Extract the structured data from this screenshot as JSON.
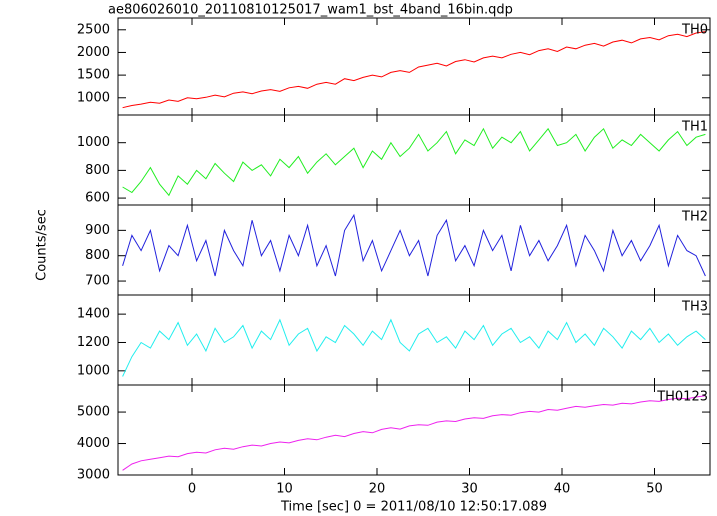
{
  "title": "ae806026010_20110810125017_wam1_bst_4band_16bin.qdp",
  "y_label": "Counts/sec",
  "x_label": "Time [sec] 0 = 2011/08/10 12:50:17.089",
  "chart_data": [
    {
      "type": "line",
      "label": "TH0",
      "color": "#ff0000",
      "x": [
        -7.5,
        -6.5,
        -5.5,
        -4.5,
        -3.5,
        -2.5,
        -1.5,
        -0.5,
        0.5,
        1.5,
        2.5,
        3.5,
        4.5,
        5.5,
        6.5,
        7.5,
        8.5,
        9.5,
        10.5,
        11.5,
        12.5,
        13.5,
        14.5,
        15.5,
        16.5,
        17.5,
        18.5,
        19.5,
        20.5,
        21.5,
        22.5,
        23.5,
        24.5,
        25.5,
        26.5,
        27.5,
        28.5,
        29.5,
        30.5,
        31.5,
        32.5,
        33.5,
        34.5,
        35.5,
        36.5,
        37.5,
        38.5,
        39.5,
        40.5,
        41.5,
        42.5,
        43.5,
        44.5,
        45.5,
        46.5,
        47.5,
        48.5,
        49.5,
        50.5,
        51.5,
        52.5,
        53.5,
        54.5,
        55.5
      ],
      "values": [
        780,
        830,
        860,
        900,
        880,
        950,
        920,
        1000,
        980,
        1010,
        1060,
        1020,
        1100,
        1130,
        1090,
        1150,
        1180,
        1140,
        1220,
        1250,
        1210,
        1300,
        1340,
        1300,
        1420,
        1380,
        1450,
        1500,
        1460,
        1560,
        1600,
        1560,
        1680,
        1720,
        1760,
        1700,
        1800,
        1840,
        1790,
        1880,
        1920,
        1880,
        1960,
        2000,
        1950,
        2040,
        2080,
        2020,
        2120,
        2080,
        2160,
        2200,
        2140,
        2230,
        2270,
        2210,
        2300,
        2330,
        2280,
        2370,
        2400,
        2350,
        2430,
        2460
      ],
      "xlim": [
        -8,
        56
      ],
      "xticks": [
        0,
        10,
        20,
        30,
        40,
        50
      ],
      "ylim": [
        620,
        2760
      ],
      "yticks": [
        1000,
        1500,
        2000,
        2500
      ]
    },
    {
      "type": "line",
      "label": "TH1",
      "color": "#22ee22",
      "x": [
        -7.5,
        -6.5,
        -5.5,
        -4.5,
        -3.5,
        -2.5,
        -1.5,
        -0.5,
        0.5,
        1.5,
        2.5,
        3.5,
        4.5,
        5.5,
        6.5,
        7.5,
        8.5,
        9.5,
        10.5,
        11.5,
        12.5,
        13.5,
        14.5,
        15.5,
        16.5,
        17.5,
        18.5,
        19.5,
        20.5,
        21.5,
        22.5,
        23.5,
        24.5,
        25.5,
        26.5,
        27.5,
        28.5,
        29.5,
        30.5,
        31.5,
        32.5,
        33.5,
        34.5,
        35.5,
        36.5,
        37.5,
        38.5,
        39.5,
        40.5,
        41.5,
        42.5,
        43.5,
        44.5,
        45.5,
        46.5,
        47.5,
        48.5,
        49.5,
        50.5,
        51.5,
        52.5,
        53.5,
        54.5,
        55.5
      ],
      "values": [
        680,
        640,
        720,
        820,
        700,
        620,
        760,
        700,
        800,
        740,
        850,
        780,
        720,
        860,
        800,
        840,
        760,
        880,
        820,
        900,
        780,
        860,
        920,
        840,
        900,
        960,
        820,
        940,
        880,
        1000,
        900,
        960,
        1060,
        940,
        1000,
        1080,
        920,
        1020,
        980,
        1100,
        960,
        1040,
        1000,
        1080,
        940,
        1020,
        1100,
        980,
        1000,
        1060,
        940,
        1040,
        1100,
        960,
        1020,
        980,
        1060,
        1000,
        940,
        1020,
        1080,
        980,
        1040,
        1060
      ],
      "xlim": [
        -8,
        56
      ],
      "xticks": [
        0,
        10,
        20,
        30,
        40,
        50
      ],
      "ylim": [
        550,
        1200
      ],
      "yticks": [
        600,
        800,
        1000
      ]
    },
    {
      "type": "line",
      "label": "TH2",
      "color": "#2222dd",
      "x": [
        -7.5,
        -6.5,
        -5.5,
        -4.5,
        -3.5,
        -2.5,
        -1.5,
        -0.5,
        0.5,
        1.5,
        2.5,
        3.5,
        4.5,
        5.5,
        6.5,
        7.5,
        8.5,
        9.5,
        10.5,
        11.5,
        12.5,
        13.5,
        14.5,
        15.5,
        16.5,
        17.5,
        18.5,
        19.5,
        20.5,
        21.5,
        22.5,
        23.5,
        24.5,
        25.5,
        26.5,
        27.5,
        28.5,
        29.5,
        30.5,
        31.5,
        32.5,
        33.5,
        34.5,
        35.5,
        36.5,
        37.5,
        38.5,
        39.5,
        40.5,
        41.5,
        42.5,
        43.5,
        44.5,
        45.5,
        46.5,
        47.5,
        48.5,
        49.5,
        50.5,
        51.5,
        52.5,
        53.5,
        54.5,
        55.5
      ],
      "values": [
        760,
        880,
        820,
        900,
        740,
        840,
        800,
        920,
        780,
        860,
        720,
        900,
        820,
        760,
        940,
        800,
        860,
        740,
        880,
        800,
        920,
        760,
        840,
        720,
        900,
        960,
        780,
        860,
        740,
        820,
        900,
        800,
        860,
        720,
        880,
        940,
        780,
        840,
        760,
        900,
        820,
        880,
        740,
        920,
        800,
        860,
        780,
        840,
        920,
        760,
        880,
        820,
        740,
        900,
        800,
        860,
        780,
        840,
        920,
        760,
        880,
        820,
        800,
        720
      ],
      "xlim": [
        -8,
        56
      ],
      "xticks": [
        0,
        10,
        20,
        30,
        40,
        50
      ],
      "ylim": [
        645,
        1000
      ],
      "yticks": [
        700,
        800,
        900
      ]
    },
    {
      "type": "line",
      "label": "TH3",
      "color": "#22eeee",
      "x": [
        -7.5,
        -6.5,
        -5.5,
        -4.5,
        -3.5,
        -2.5,
        -1.5,
        -0.5,
        0.5,
        1.5,
        2.5,
        3.5,
        4.5,
        5.5,
        6.5,
        7.5,
        8.5,
        9.5,
        10.5,
        11.5,
        12.5,
        13.5,
        14.5,
        15.5,
        16.5,
        17.5,
        18.5,
        19.5,
        20.5,
        21.5,
        22.5,
        23.5,
        24.5,
        25.5,
        26.5,
        27.5,
        28.5,
        29.5,
        30.5,
        31.5,
        32.5,
        33.5,
        34.5,
        35.5,
        36.5,
        37.5,
        38.5,
        39.5,
        40.5,
        41.5,
        42.5,
        43.5,
        44.5,
        45.5,
        46.5,
        47.5,
        48.5,
        49.5,
        50.5,
        51.5,
        52.5,
        53.5,
        54.5,
        55.5
      ],
      "values": [
        960,
        1100,
        1200,
        1160,
        1280,
        1220,
        1340,
        1180,
        1260,
        1140,
        1300,
        1200,
        1240,
        1320,
        1160,
        1280,
        1220,
        1360,
        1180,
        1260,
        1300,
        1140,
        1240,
        1200,
        1320,
        1260,
        1180,
        1280,
        1220,
        1360,
        1200,
        1140,
        1260,
        1300,
        1200,
        1240,
        1160,
        1280,
        1220,
        1320,
        1180,
        1260,
        1300,
        1200,
        1240,
        1160,
        1280,
        1220,
        1340,
        1200,
        1260,
        1180,
        1300,
        1240,
        1160,
        1280,
        1220,
        1300,
        1200,
        1260,
        1180,
        1240,
        1280,
        1220
      ],
      "xlim": [
        -8,
        56
      ],
      "xticks": [
        0,
        10,
        20,
        30,
        40,
        50
      ],
      "ylim": [
        900,
        1535
      ],
      "yticks": [
        1000,
        1200,
        1400
      ]
    },
    {
      "type": "line",
      "label": "TH0123",
      "color": "#ee22ee",
      "x": [
        -7.5,
        -6.5,
        -5.5,
        -4.5,
        -3.5,
        -2.5,
        -1.5,
        -0.5,
        0.5,
        1.5,
        2.5,
        3.5,
        4.5,
        5.5,
        6.5,
        7.5,
        8.5,
        9.5,
        10.5,
        11.5,
        12.5,
        13.5,
        14.5,
        15.5,
        16.5,
        17.5,
        18.5,
        19.5,
        20.5,
        21.5,
        22.5,
        23.5,
        24.5,
        25.5,
        26.5,
        27.5,
        28.5,
        29.5,
        30.5,
        31.5,
        32.5,
        33.5,
        34.5,
        35.5,
        36.5,
        37.5,
        38.5,
        39.5,
        40.5,
        41.5,
        42.5,
        43.5,
        44.5,
        45.5,
        46.5,
        47.5,
        48.5,
        49.5,
        50.5,
        51.5,
        52.5,
        53.5,
        54.5,
        55.5
      ],
      "values": [
        3150,
        3350,
        3450,
        3500,
        3550,
        3600,
        3580,
        3680,
        3720,
        3700,
        3800,
        3850,
        3820,
        3900,
        3950,
        3920,
        4000,
        4050,
        4020,
        4100,
        4150,
        4120,
        4200,
        4260,
        4220,
        4320,
        4380,
        4340,
        4450,
        4500,
        4460,
        4560,
        4600,
        4580,
        4680,
        4720,
        4700,
        4780,
        4820,
        4800,
        4880,
        4920,
        4900,
        4980,
        5020,
        5000,
        5080,
        5060,
        5120,
        5180,
        5150,
        5200,
        5240,
        5220,
        5280,
        5260,
        5320,
        5360,
        5340,
        5400,
        5440,
        5420,
        5480,
        5520
      ],
      "xlim": [
        -8,
        56
      ],
      "xticks": [
        0,
        10,
        20,
        30,
        40,
        50
      ],
      "ylim": [
        3000,
        5860
      ],
      "yticks": [
        3000,
        4000,
        5000
      ]
    }
  ]
}
